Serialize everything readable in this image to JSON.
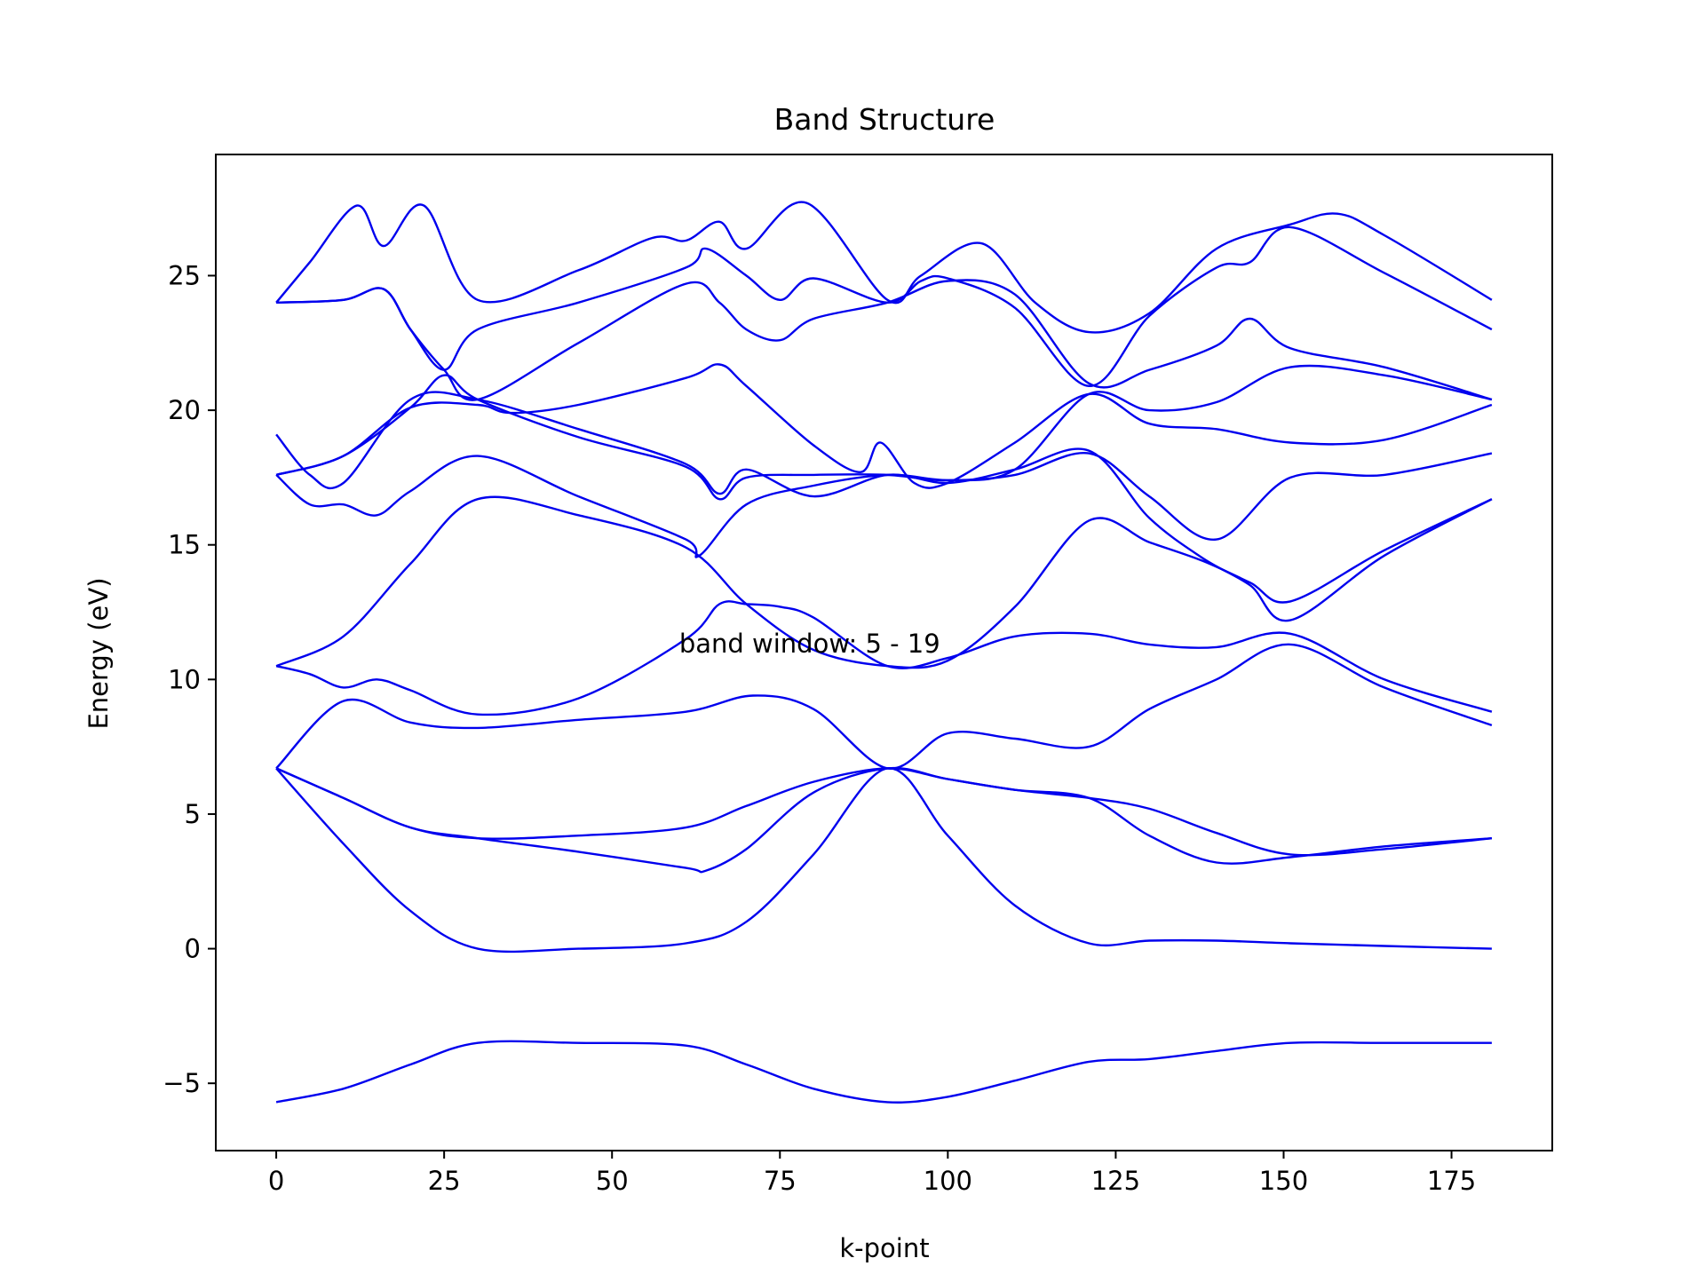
{
  "chart_data": {
    "type": "line",
    "title": "Band Structure",
    "xlabel": "k-point",
    "ylabel": "Energy (eV)",
    "annotation": "band window: 5 - 19",
    "annotation_position": {
      "x": 60,
      "y": 11
    },
    "xlim": [
      -9,
      190
    ],
    "ylim": [
      -7.5,
      29.5
    ],
    "xticks": [
      0,
      25,
      50,
      75,
      100,
      125,
      150,
      175
    ],
    "xtick_labels": [
      "0",
      "25",
      "50",
      "75",
      "100",
      "125",
      "150",
      "175"
    ],
    "yticks": [
      -5,
      0,
      5,
      10,
      15,
      20,
      25
    ],
    "ytick_labels": [
      "−5",
      "0",
      "5",
      "10",
      "15",
      "20",
      "25"
    ],
    "grid": false,
    "legend": "none",
    "line_color": "#0000ee",
    "series": [
      {
        "values": [
          [
            0,
            -5.7
          ],
          [
            10,
            -5.2
          ],
          [
            20,
            -4.3
          ],
          [
            30,
            -3.5
          ],
          [
            45,
            -3.5
          ],
          [
            61,
            -3.6
          ],
          [
            70,
            -4.3
          ],
          [
            80,
            -5.2
          ],
          [
            91,
            -5.7
          ],
          [
            100,
            -5.5
          ],
          [
            110,
            -4.9
          ],
          [
            121,
            -4.2
          ],
          [
            130,
            -4.1
          ],
          [
            140,
            -3.8
          ],
          [
            151,
            -3.5
          ],
          [
            165,
            -3.5
          ],
          [
            181,
            -3.5
          ]
        ]
      },
      {
        "values": [
          [
            0,
            6.7
          ],
          [
            10,
            3.9
          ],
          [
            20,
            1.4
          ],
          [
            30,
            0.0
          ],
          [
            45,
            0.0
          ],
          [
            61,
            0.2
          ],
          [
            70,
            1.0
          ],
          [
            80,
            3.5
          ],
          [
            91,
            6.7
          ],
          [
            100,
            4.2
          ],
          [
            110,
            1.6
          ],
          [
            121,
            0.2
          ],
          [
            130,
            0.3
          ],
          [
            140,
            0.3
          ],
          [
            151,
            0.2
          ],
          [
            165,
            0.1
          ],
          [
            181,
            0.0
          ]
        ]
      },
      {
        "values": [
          [
            0,
            6.7
          ],
          [
            10,
            5.6
          ],
          [
            20,
            4.5
          ],
          [
            30,
            4.1
          ],
          [
            45,
            3.6
          ],
          [
            61,
            3.0
          ],
          [
            64,
            2.9
          ],
          [
            70,
            3.7
          ],
          [
            80,
            5.8
          ],
          [
            91,
            6.7
          ],
          [
            100,
            6.3
          ],
          [
            110,
            5.9
          ],
          [
            121,
            5.6
          ],
          [
            130,
            4.2
          ],
          [
            140,
            3.2
          ],
          [
            151,
            3.4
          ],
          [
            165,
            3.8
          ],
          [
            181,
            4.1
          ]
        ]
      },
      {
        "values": [
          [
            0,
            6.7
          ],
          [
            10,
            5.6
          ],
          [
            20,
            4.5
          ],
          [
            30,
            4.1
          ],
          [
            45,
            4.2
          ],
          [
            61,
            4.5
          ],
          [
            70,
            5.3
          ],
          [
            80,
            6.2
          ],
          [
            91,
            6.7
          ],
          [
            100,
            6.3
          ],
          [
            110,
            5.9
          ],
          [
            121,
            5.6
          ],
          [
            130,
            5.2
          ],
          [
            140,
            4.3
          ],
          [
            151,
            3.5
          ],
          [
            165,
            3.7
          ],
          [
            181,
            4.1
          ]
        ]
      },
      {
        "values": [
          [
            0,
            6.7
          ],
          [
            10,
            9.2
          ],
          [
            20,
            8.4
          ],
          [
            30,
            8.2
          ],
          [
            45,
            8.5
          ],
          [
            61,
            8.8
          ],
          [
            71,
            9.4
          ],
          [
            80,
            8.9
          ],
          [
            91,
            6.7
          ],
          [
            100,
            8.0
          ],
          [
            110,
            7.8
          ],
          [
            121,
            7.5
          ],
          [
            130,
            8.9
          ],
          [
            140,
            10.0
          ],
          [
            151,
            11.3
          ],
          [
            165,
            9.7
          ],
          [
            181,
            8.3
          ]
        ]
      },
      {
        "values": [
          [
            0,
            10.5
          ],
          [
            5,
            10.2
          ],
          [
            10,
            9.7
          ],
          [
            15,
            10.0
          ],
          [
            20,
            9.6
          ],
          [
            30,
            8.7
          ],
          [
            45,
            9.3
          ],
          [
            61,
            11.5
          ],
          [
            66,
            12.8
          ],
          [
            70,
            12.8
          ],
          [
            75,
            12.7
          ],
          [
            80,
            12.3
          ],
          [
            91,
            10.5
          ],
          [
            100,
            10.8
          ],
          [
            110,
            11.6
          ],
          [
            121,
            11.7
          ],
          [
            130,
            11.3
          ],
          [
            140,
            11.2
          ],
          [
            151,
            11.7
          ],
          [
            165,
            10.0
          ],
          [
            181,
            8.8
          ]
        ]
      },
      {
        "values": [
          [
            0,
            10.5
          ],
          [
            10,
            11.6
          ],
          [
            20,
            14.3
          ],
          [
            30,
            16.7
          ],
          [
            45,
            16.1
          ],
          [
            61,
            14.9
          ],
          [
            70,
            12.8
          ],
          [
            80,
            11.1
          ],
          [
            91,
            10.5
          ],
          [
            100,
            10.7
          ],
          [
            110,
            12.7
          ],
          [
            121,
            15.9
          ],
          [
            130,
            15.1
          ],
          [
            138,
            14.4
          ],
          [
            145,
            13.6
          ],
          [
            151,
            12.9
          ],
          [
            165,
            14.8
          ],
          [
            181,
            16.7
          ]
        ]
      },
      {
        "values": [
          [
            0,
            17.6
          ],
          [
            10,
            18.3
          ],
          [
            20,
            20.1
          ],
          [
            30,
            20.2
          ],
          [
            35,
            19.9
          ],
          [
            45,
            20.2
          ],
          [
            61,
            21.2
          ],
          [
            66,
            21.7
          ],
          [
            70,
            20.9
          ],
          [
            80,
            18.7
          ],
          [
            87,
            17.7
          ],
          [
            90,
            18.8
          ],
          [
            95,
            17.3
          ],
          [
            100,
            17.3
          ],
          [
            110,
            18.8
          ],
          [
            121,
            20.6
          ],
          [
            130,
            19.5
          ],
          [
            140,
            19.3
          ],
          [
            151,
            18.8
          ],
          [
            165,
            18.9
          ],
          [
            181,
            20.2
          ]
        ]
      },
      {
        "values": [
          [
            0,
            17.6
          ],
          [
            5,
            16.5
          ],
          [
            10,
            16.5
          ],
          [
            15,
            16.1
          ],
          [
            20,
            17.0
          ],
          [
            30,
            18.3
          ],
          [
            45,
            16.8
          ],
          [
            61,
            15.2
          ],
          [
            63,
            14.6
          ],
          [
            70,
            16.5
          ],
          [
            80,
            17.2
          ],
          [
            91,
            17.6
          ],
          [
            100,
            17.4
          ],
          [
            110,
            17.6
          ],
          [
            121,
            18.4
          ],
          [
            130,
            16.8
          ],
          [
            140,
            15.2
          ],
          [
            151,
            17.5
          ],
          [
            165,
            17.6
          ],
          [
            181,
            18.4
          ]
        ]
      },
      {
        "values": [
          [
            0,
            19.1
          ],
          [
            5,
            17.6
          ],
          [
            10,
            17.3
          ],
          [
            20,
            20.4
          ],
          [
            30,
            20.4
          ],
          [
            45,
            19.3
          ],
          [
            61,
            18.0
          ],
          [
            66,
            16.9
          ],
          [
            70,
            17.8
          ],
          [
            80,
            16.8
          ],
          [
            91,
            17.6
          ],
          [
            100,
            17.3
          ],
          [
            110,
            17.8
          ],
          [
            121,
            18.5
          ],
          [
            130,
            16.0
          ],
          [
            138,
            14.5
          ],
          [
            145,
            13.5
          ],
          [
            151,
            12.2
          ],
          [
            165,
            14.6
          ],
          [
            181,
            16.7
          ]
        ]
      },
      {
        "values": [
          [
            0,
            24.0
          ],
          [
            10,
            24.1
          ],
          [
            16,
            24.5
          ],
          [
            20,
            23.0
          ],
          [
            25,
            21.5
          ],
          [
            30,
            20.4
          ],
          [
            45,
            22.5
          ],
          [
            61,
            24.7
          ],
          [
            66,
            24.0
          ],
          [
            70,
            23.0
          ],
          [
            75,
            22.6
          ],
          [
            80,
            23.4
          ],
          [
            91,
            24.0
          ],
          [
            100,
            24.8
          ],
          [
            110,
            24.3
          ],
          [
            121,
            21.0
          ],
          [
            130,
            21.5
          ],
          [
            140,
            22.4
          ],
          [
            145,
            23.4
          ],
          [
            151,
            22.3
          ],
          [
            165,
            21.6
          ],
          [
            181,
            20.4
          ]
        ]
      },
      {
        "values": [
          [
            0,
            24.0
          ],
          [
            10,
            24.1
          ],
          [
            16,
            24.5
          ],
          [
            20,
            23.0
          ],
          [
            25,
            21.5
          ],
          [
            30,
            23.0
          ],
          [
            45,
            24.0
          ],
          [
            61,
            25.3
          ],
          [
            64,
            26.0
          ],
          [
            70,
            25.0
          ],
          [
            75,
            24.1
          ],
          [
            80,
            24.9
          ],
          [
            91,
            24.0
          ],
          [
            96,
            24.8
          ],
          [
            100,
            24.9
          ],
          [
            110,
            23.8
          ],
          [
            121,
            20.9
          ],
          [
            130,
            23.5
          ],
          [
            140,
            25.3
          ],
          [
            145,
            25.5
          ],
          [
            151,
            26.8
          ],
          [
            165,
            25.1
          ],
          [
            181,
            23.0
          ]
        ]
      },
      {
        "values": [
          [
            0,
            24.0
          ],
          [
            5,
            25.5
          ],
          [
            12,
            27.6
          ],
          [
            16,
            26.1
          ],
          [
            22,
            27.6
          ],
          [
            30,
            24.1
          ],
          [
            45,
            25.2
          ],
          [
            56,
            26.4
          ],
          [
            61,
            26.3
          ],
          [
            66,
            27.0
          ],
          [
            70,
            26.0
          ],
          [
            79,
            27.7
          ],
          [
            91,
            24.1
          ],
          [
            96,
            25.0
          ],
          [
            105,
            26.2
          ],
          [
            113,
            24.0
          ],
          [
            121,
            22.9
          ],
          [
            130,
            23.6
          ],
          [
            140,
            26.0
          ],
          [
            151,
            26.9
          ],
          [
            158,
            27.3
          ],
          [
            165,
            26.5
          ],
          [
            181,
            24.1
          ]
        ]
      },
      {
        "values": [
          [
            0,
            17.6
          ],
          [
            10,
            18.3
          ],
          [
            20,
            20.1
          ],
          [
            25,
            21.3
          ],
          [
            30,
            20.4
          ],
          [
            45,
            19.0
          ],
          [
            61,
            17.9
          ],
          [
            66,
            16.7
          ],
          [
            70,
            17.5
          ],
          [
            80,
            17.6
          ],
          [
            91,
            17.6
          ],
          [
            100,
            17.4
          ],
          [
            110,
            17.8
          ],
          [
            121,
            20.6
          ],
          [
            130,
            20.0
          ],
          [
            140,
            20.3
          ],
          [
            151,
            21.6
          ],
          [
            165,
            21.3
          ],
          [
            181,
            20.4
          ]
        ]
      }
    ]
  }
}
